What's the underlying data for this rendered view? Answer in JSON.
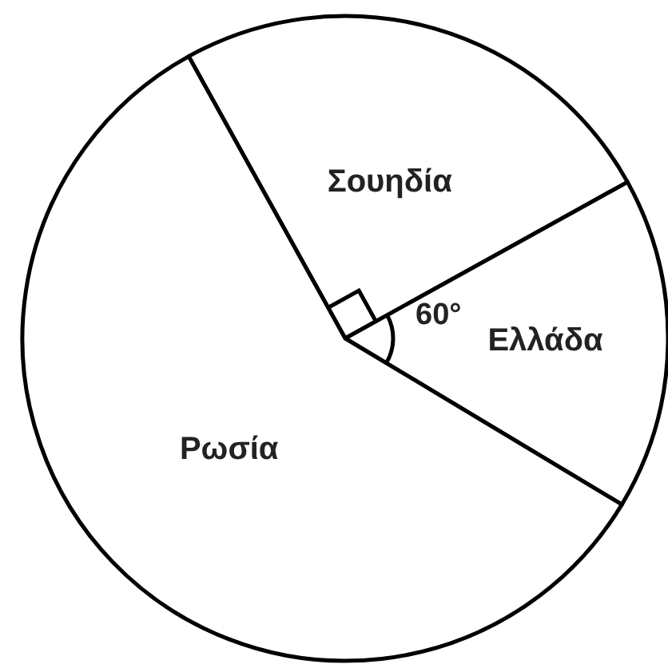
{
  "chart_data": {
    "type": "pie",
    "categories": [
      "Σουηδία",
      "Ελλάδα",
      "Ρωσία"
    ],
    "values": [
      25,
      16.67,
      58.33
    ],
    "colors": [
      "#ffffff",
      "#ffffff",
      "#ffffff"
    ],
    "annotations": [
      "60°"
    ]
  }
}
